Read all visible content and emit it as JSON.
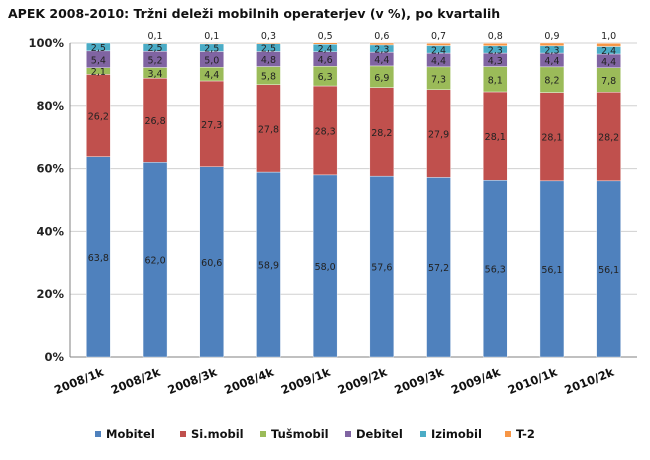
{
  "chart_data": {
    "type": "bar",
    "stacked": true,
    "title": "APEK 2008-2010: Tržni deleži mobilnih operaterjev (v %), po kvartalih",
    "xlabel": "",
    "ylabel": "",
    "ylim": [
      0,
      100
    ],
    "yticks": [
      "0%",
      "20%",
      "40%",
      "60%",
      "80%",
      "100%"
    ],
    "grid": true,
    "legend_position": "bottom",
    "categories": [
      "2008/1k",
      "2008/2k",
      "2008/3k",
      "2008/4k",
      "2009/1k",
      "2009/2k",
      "2009/3k",
      "2009/4k",
      "2010/1k",
      "2010/2k"
    ],
    "series": [
      {
        "name": "Mobitel",
        "color": "#4f81bd",
        "values": [
          63.8,
          62.0,
          60.6,
          58.9,
          58.0,
          57.6,
          57.2,
          56.3,
          56.1,
          56.1
        ],
        "labels": [
          "63,8",
          "62,0",
          "60,6",
          "58,9",
          "58,0",
          "57,6",
          "57,2",
          "56,3",
          "56,1",
          "56,1"
        ]
      },
      {
        "name": "Si.mobil",
        "color": "#c0504d",
        "values": [
          26.2,
          26.8,
          27.3,
          27.8,
          28.3,
          28.2,
          27.9,
          28.1,
          28.1,
          28.2
        ],
        "labels": [
          "26,2",
          "26,8",
          "27,3",
          "27,8",
          "28,3",
          "28,2",
          "27,9",
          "28,1",
          "28,1",
          "28,2"
        ]
      },
      {
        "name": "Tušmobil",
        "color": "#9bbb59",
        "values": [
          2.1,
          3.4,
          4.4,
          5.8,
          6.3,
          6.9,
          7.3,
          8.1,
          8.2,
          7.8
        ],
        "labels": [
          "2,1",
          "3,4",
          "4,4",
          "5,8",
          "6,3",
          "6,9",
          "7,3",
          "8,1",
          "8,2",
          "7,8"
        ]
      },
      {
        "name": "Debitel",
        "color": "#8064a2",
        "values": [
          5.4,
          5.2,
          5.0,
          4.8,
          4.6,
          4.4,
          4.4,
          4.3,
          4.4,
          4.4
        ],
        "labels": [
          "5,4",
          "5,2",
          "5,0",
          "4,8",
          "4,6",
          "4,4",
          "4,4",
          "4,3",
          "4,4",
          "4,4"
        ]
      },
      {
        "name": "Izimobil",
        "color": "#4bacc6",
        "values": [
          2.5,
          2.5,
          2.5,
          2.5,
          2.4,
          2.3,
          2.4,
          2.3,
          2.3,
          2.4
        ],
        "labels": [
          "2,5",
          "2,5",
          "2,5",
          "2,5",
          "2,4",
          "2,3",
          "2,4",
          "2,3",
          "2,3",
          "2,4"
        ]
      },
      {
        "name": "T-2",
        "color": "#f79646",
        "values": [
          0,
          0.1,
          0.1,
          0.3,
          0.5,
          0.6,
          0.7,
          0.8,
          0.9,
          1.0
        ],
        "labels": [
          "",
          "0,1",
          "0,1",
          "0,3",
          "0,5",
          "0,6",
          "0,7",
          "0,8",
          "0,9",
          "1,0"
        ]
      }
    ]
  }
}
